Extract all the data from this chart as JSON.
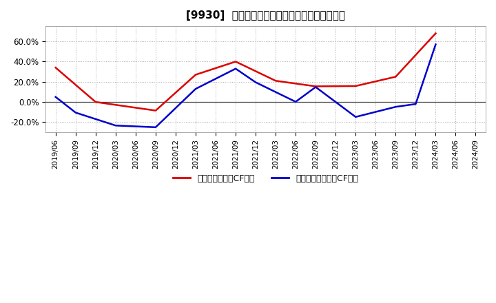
{
  "title": "[9930]  有利子負債キャッシュフロー比率の推移",
  "red_label": "有利子負債営業CF比率",
  "blue_label": "有利子負債フリーCF比率",
  "red_color": "#dd0000",
  "blue_color": "#0000cc",
  "background_color": "#ffffff",
  "grid_color": "#aaaaaa",
  "x_labels": [
    "2019/06",
    "2019/09",
    "2019/12",
    "2020/03",
    "2020/06",
    "2020/09",
    "2020/12",
    "2021/03",
    "2021/06",
    "2021/09",
    "2021/12",
    "2022/03",
    "2022/06",
    "2022/09",
    "2022/12",
    "2023/03",
    "2023/06",
    "2023/09",
    "2023/12",
    "2024/03",
    "2024/06",
    "2024/09"
  ],
  "red_x_indices": [
    0,
    2,
    5,
    7,
    9,
    11,
    13,
    15,
    17,
    19
  ],
  "red_y": [
    0.34,
    0.0,
    -0.085,
    0.27,
    0.4,
    0.21,
    0.155,
    0.158,
    0.25,
    0.68
  ],
  "blue_x_indices": [
    0,
    1,
    3,
    5,
    7,
    9,
    10,
    12,
    13,
    15,
    17,
    18,
    19
  ],
  "blue_y": [
    0.05,
    -0.105,
    -0.233,
    -0.25,
    0.13,
    0.33,
    0.195,
    0.002,
    0.148,
    -0.148,
    -0.048,
    -0.02,
    0.57
  ],
  "ylim": [
    -0.3,
    0.75
  ],
  "yticks": [
    -0.2,
    0.0,
    0.2,
    0.4,
    0.6
  ],
  "ytick_labels": [
    "-20.0%",
    "0.0%",
    "20.0%",
    "40.0%",
    "60.0%"
  ]
}
